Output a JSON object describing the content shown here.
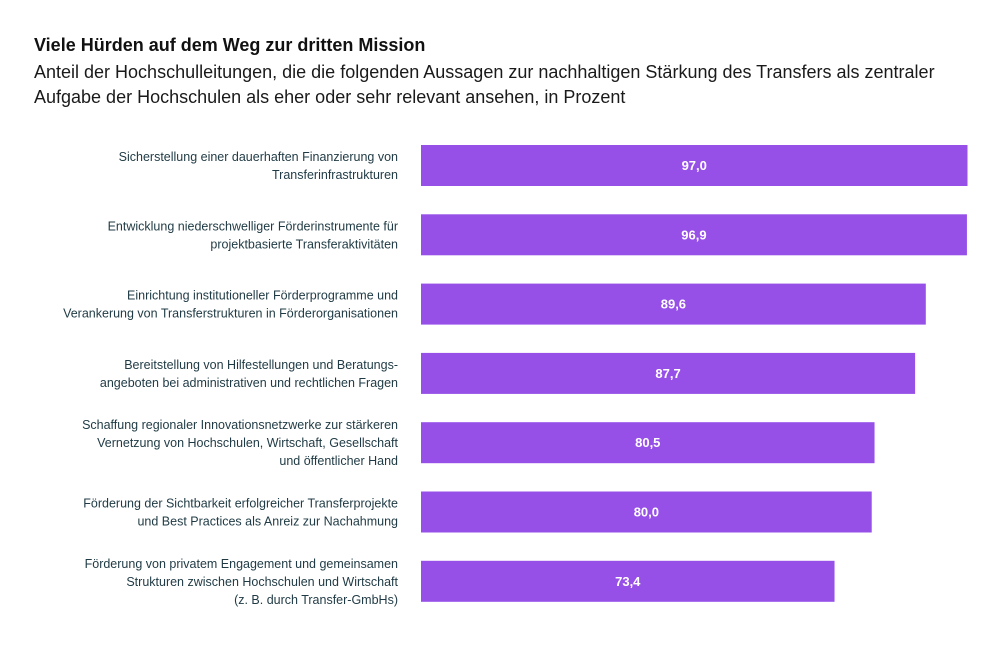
{
  "title": "Viele Hürden auf dem Weg zur dritten Mission",
  "subtitle": "Anteil der Hochschulleitungen, die die folgenden Aussagen zur nachhaltigen Stärkung des Transfers als zentraler Aufgabe der Hochschulen als eher oder sehr relevant ansehen, in Prozent",
  "chart_data": {
    "type": "bar",
    "orientation": "horizontal",
    "title": "Viele Hürden auf dem Weg zur dritten Mission",
    "subtitle": "Anteil der Hochschulleitungen, die die folgenden Aussagen zur nachhaltigen Stärkung des Transfers als zentraler Aufgabe der Hochschulen als eher oder sehr relevant ansehen, in Prozent",
    "categories": [
      [
        "Sicherstellung einer dauerhaften Finanzierung von",
        "Transferinfrastrukturen"
      ],
      [
        "Entwicklung niederschwelliger Förderinstrumente für",
        "projektbasierte Transferaktivitäten"
      ],
      [
        "Einrichtung institutioneller Förderprogramme und",
        "Verankerung von Transferstrukturen in Förderorganisationen"
      ],
      [
        "Bereitstellung von Hilfestellungen und Beratungs-",
        "angeboten bei administrativen und rechtlichen Fragen"
      ],
      [
        "Schaffung regionaler Innovationsnetzwerke zur stärkeren",
        "Vernetzung von Hochschulen, Wirtschaft, Gesellschaft",
        "und öffentlicher Hand"
      ],
      [
        "Förderung der Sichtbarkeit erfolgreicher Transferprojekte",
        "und Best Practices als Anreiz zur Nachahmung"
      ],
      [
        "Förderung von privatem Engagement und gemeinsamen",
        "Strukturen zwischen Hochschulen und Wirtschaft",
        "(z. B. durch Transfer-GmbHs)"
      ]
    ],
    "values": [
      97.0,
      96.9,
      89.6,
      87.7,
      80.5,
      80.0,
      73.4
    ],
    "value_labels": [
      "97,0",
      "96,9",
      "89,6",
      "87,7",
      "80,5",
      "80,0",
      "73,4"
    ],
    "xlim": [
      0,
      100
    ],
    "xlabel": "",
    "ylabel": "",
    "grid": false,
    "legend": "none",
    "bar_color": "#9650e8"
  }
}
